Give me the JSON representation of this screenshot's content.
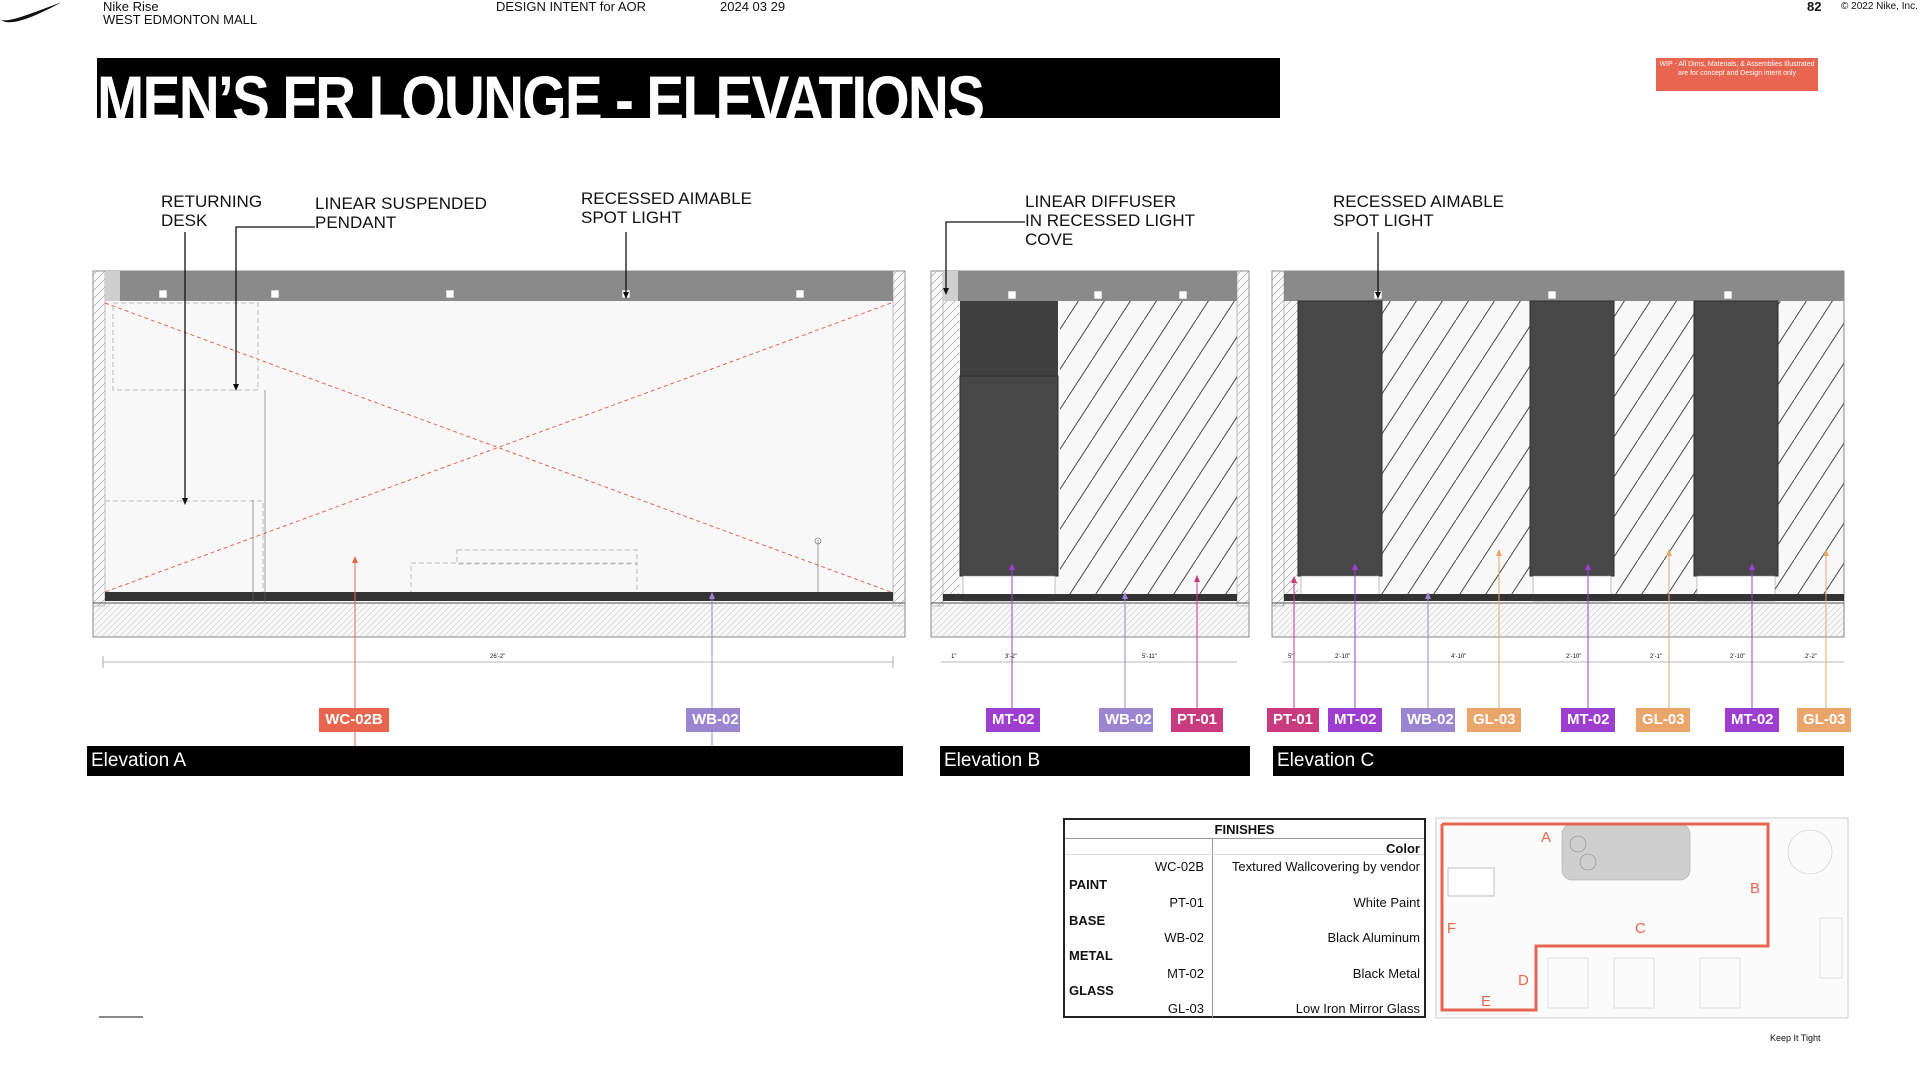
{
  "header": {
    "project": "Nike Rise",
    "location": "WEST EDMONTON MALL",
    "intent": "DESIGN INTENT for AOR",
    "date": "2024 03 29",
    "page": "82",
    "copyright": "© 2022 Nike, Inc."
  },
  "title": "MEN’S FR LOUNGE - ELEVATIONS",
  "wip_note": "WIP - All Dims, Materials, & Assemblies Illustrated are for concept and Design intent only",
  "callouts": {
    "returning_desk": "RETURNING\nDESK",
    "linear_pendant": "LINEAR SUSPENDED\nPENDANT",
    "spot_a": "RECESSED AIMABLE\nSPOT LIGHT",
    "diffuser": "LINEAR DIFFUSER\nIN RECESSED LIGHT\nCOVE",
    "spot_c": "RECESSED AIMABLE\nSPOT LIGHT"
  },
  "dimensions": {
    "a_total": "26'-2\"",
    "b": [
      "1\"",
      "3'-2\"",
      "5'-11\""
    ],
    "c": [
      "5\"",
      "2'-10\"",
      "4'-10\"",
      "2'-10\"",
      "2'-1\"",
      "2'-10\"",
      "2'-2\""
    ]
  },
  "tags": {
    "a": [
      "WC-02B",
      "WB-02"
    ],
    "b": [
      "MT-02",
      "WB-02",
      "PT-01"
    ],
    "c": [
      "PT-01",
      "MT-02",
      "WB-02",
      "GL-03",
      "MT-02",
      "GL-03",
      "MT-02",
      "GL-03"
    ]
  },
  "elevations": [
    "Elevation A",
    "Elevation B",
    "Elevation C"
  ],
  "finishes": {
    "heading": "FINISHES",
    "color_header": "Color",
    "rows": [
      {
        "category": "",
        "code": "WC-02B",
        "value": "Textured Wallcovering by vendor"
      },
      {
        "category": "PAINT",
        "code": "PT-01",
        "value": "White Paint"
      },
      {
        "category": "BASE",
        "code": "WB-02",
        "value": "Black Aluminum"
      },
      {
        "category": "METAL",
        "code": "MT-02",
        "value": "Black Metal"
      },
      {
        "category": "GLASS",
        "code": "GL-03",
        "value": "Low Iron Mirror Glass"
      }
    ]
  },
  "plan_labels": [
    "A",
    "B",
    "C",
    "D",
    "E",
    "F"
  ],
  "footer_note": "Keep It Tight",
  "colors": {
    "wc": "#e8664f",
    "wb": "#9b85d0",
    "mt": "#9e3ed1",
    "pt": "#c93a7e",
    "gl": "#e9a56a"
  }
}
